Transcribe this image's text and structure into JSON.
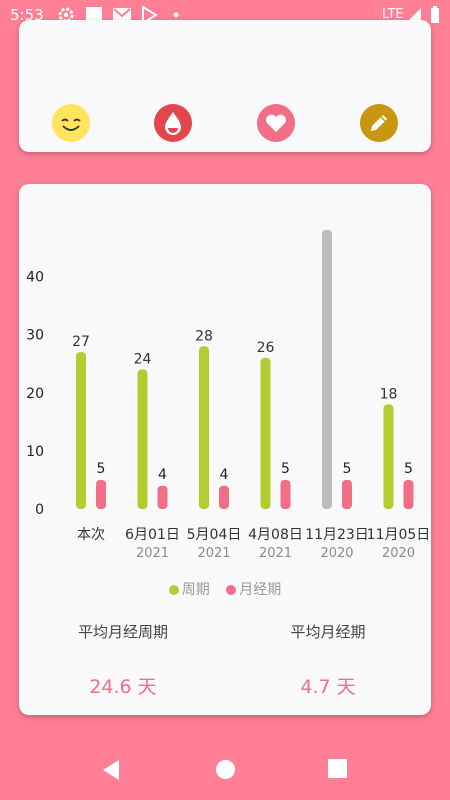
{
  "status_bar": {
    "time": "5:53",
    "network": "LTE",
    "icons": [
      "settings-icon",
      "square-icon",
      "gmail-icon",
      "play-store-icon",
      "dot-icon",
      "signal-icon",
      "battery-icon"
    ]
  },
  "top_card": {
    "buttons": [
      {
        "name": "happy-face-icon",
        "color": "#ffe45c"
      },
      {
        "name": "blood-drop-icon",
        "color": "#e2474f"
      },
      {
        "name": "heart-icon",
        "color": "#f26e86"
      },
      {
        "name": "pencil-icon",
        "color": "#c8960f"
      }
    ]
  },
  "chart_data": {
    "type": "bar",
    "categories": [
      "本次",
      "6月01日",
      "5月04日",
      "4月08日",
      "11月23日",
      "11月05日"
    ],
    "sub_labels": [
      "",
      "2021",
      "2021",
      "2021",
      "2020",
      "2020"
    ],
    "ylim": [
      0,
      48
    ],
    "yticks": [
      0,
      10,
      20,
      30,
      40
    ],
    "series": [
      {
        "name": "周期",
        "color": "#b5cc30",
        "values": [
          27,
          24,
          28,
          26,
          48,
          18
        ],
        "value_labels": [
          "27",
          "24",
          "28",
          "26",
          "",
          "18"
        ],
        "highlight_color": "#bdbdbd",
        "highlight_index": 4
      },
      {
        "name": "月经期",
        "color": "#f26e86",
        "values": [
          5,
          4,
          4,
          5,
          5,
          5
        ],
        "value_labels": [
          "5",
          "4",
          "4",
          "5",
          "5",
          "5"
        ]
      }
    ],
    "legend": "bottom-center"
  },
  "stats": {
    "avg_cycle_label": "平均月经周期",
    "avg_cycle_value": "24.6 天",
    "avg_period_label": "平均月经期",
    "avg_period_value": "4.7 天"
  },
  "nav": {
    "back": "back-icon",
    "home": "home-icon",
    "recents": "recents-icon"
  }
}
